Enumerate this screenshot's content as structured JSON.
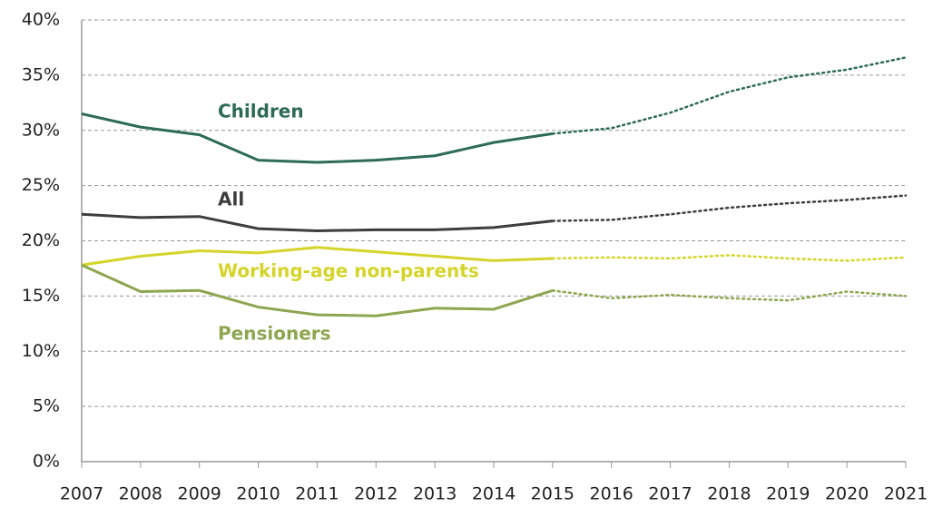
{
  "chart_data": {
    "type": "line",
    "categories": [
      "2007",
      "2008",
      "2009",
      "2010",
      "2011",
      "2012",
      "2013",
      "2014",
      "2015",
      "2016",
      "2017",
      "2018",
      "2019",
      "2020",
      "2021"
    ],
    "dotted_from": "2015",
    "series": [
      {
        "name": "Children",
        "color": "#2e6b55",
        "values": [
          31.5,
          30.3,
          29.6,
          27.3,
          27.1,
          27.3,
          27.7,
          28.9,
          29.7,
          30.2,
          31.6,
          33.5,
          34.8,
          35.5,
          36.6
        ]
      },
      {
        "name": "All",
        "color": "#3d3d3d",
        "values": [
          22.4,
          22.1,
          22.2,
          21.1,
          20.9,
          21.0,
          21.0,
          21.2,
          21.8,
          21.9,
          22.4,
          23.0,
          23.4,
          23.7,
          24.1
        ]
      },
      {
        "name": "Working-age non-parents",
        "color": "#d4d42a",
        "values": [
          17.8,
          18.6,
          19.1,
          18.9,
          19.4,
          19.0,
          18.6,
          18.2,
          18.4,
          18.5,
          18.4,
          18.7,
          18.4,
          18.2,
          18.5
        ]
      },
      {
        "name": "Pensioners",
        "color": "#8ea650",
        "values": [
          17.8,
          15.4,
          15.5,
          14.0,
          13.3,
          13.2,
          13.9,
          13.8,
          15.5,
          14.8,
          15.1,
          14.8,
          14.6,
          15.4,
          15.0
        ]
      }
    ],
    "ylim": [
      0,
      40
    ],
    "yticks": [
      {
        "value": 0,
        "label": "0%"
      },
      {
        "value": 5,
        "label": "5%"
      },
      {
        "value": 10,
        "label": "10%"
      },
      {
        "value": 15,
        "label": "15%"
      },
      {
        "value": 20,
        "label": "20%"
      },
      {
        "value": 25,
        "label": "25%"
      },
      {
        "value": 30,
        "label": "30%"
      },
      {
        "value": 35,
        "label": "35%"
      },
      {
        "value": 40,
        "label": "40%"
      }
    ],
    "grid": true
  }
}
